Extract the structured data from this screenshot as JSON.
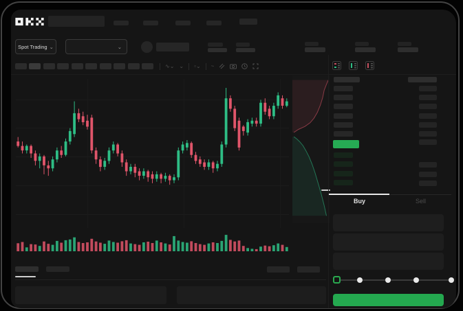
{
  "app": {
    "brand": "OKX"
  },
  "market_bar": {
    "market_selector_label": "Spot Trading",
    "chevron_glyph": "⌄"
  },
  "toolbar": {
    "indicator_glyph": "∿",
    "chevron_glyph": "⌄",
    "line_glyph": "~"
  },
  "trade_panel": {
    "buy_tab": "Buy",
    "sell_tab": "Sell"
  },
  "slider": {
    "steps": 5,
    "active_index": 0
  },
  "colors": {
    "up": "#2EBD85",
    "down": "#E0556A",
    "accent_green": "#26AB54",
    "last_price_highlight": "#26AB54",
    "bid_row_tint": "#16251A",
    "ask_row_gray": "#272727",
    "app_bg": "#151515",
    "panel_fill": "#1E1E1E"
  },
  "orderbook": {
    "view_icons": [
      "book-both-icon",
      "book-bids-icon",
      "book-asks-icon"
    ],
    "asks": [
      {
        "left": true,
        "right": true
      },
      {
        "left": true,
        "right": true
      },
      {
        "left": true,
        "right": true
      },
      {
        "left": true,
        "right": true
      },
      {
        "left": true,
        "right": true
      },
      {
        "left": true,
        "right": true
      }
    ],
    "last_price_row": {
      "highlight": "green",
      "right": true
    },
    "bids": [
      {
        "left": true,
        "right": false
      },
      {
        "left": true,
        "right": true
      },
      {
        "left": true,
        "right": true
      },
      {
        "left": true,
        "right": true
      }
    ]
  },
  "chart_data": {
    "type": "candlestick",
    "title": "",
    "note": "no numeric axis labels visible in screenshot; values are relative 0-100 of plot height",
    "grid": true,
    "legend": "none",
    "candles": [
      [
        58,
        61,
        54,
        55
      ],
      [
        55,
        58,
        50,
        52
      ],
      [
        52,
        56,
        50,
        55
      ],
      [
        55,
        56,
        47,
        50
      ],
      [
        50,
        52,
        42,
        45
      ],
      [
        45,
        50,
        40,
        48
      ],
      [
        48,
        49,
        36,
        42
      ],
      [
        42,
        45,
        35,
        40
      ],
      [
        40,
        48,
        38,
        46
      ],
      [
        46,
        54,
        44,
        52
      ],
      [
        52,
        55,
        47,
        49
      ],
      [
        49,
        60,
        48,
        58
      ],
      [
        58,
        67,
        56,
        65
      ],
      [
        63,
        85,
        61,
        77
      ],
      [
        77,
        80,
        71,
        73
      ],
      [
        75,
        78,
        69,
        71
      ],
      [
        72,
        76,
        66,
        68
      ],
      [
        74,
        76,
        50,
        52
      ],
      [
        52,
        54,
        43,
        46
      ],
      [
        46,
        48,
        38,
        41
      ],
      [
        41,
        47,
        39,
        45
      ],
      [
        45,
        54,
        43,
        52
      ],
      [
        52,
        58,
        50,
        56
      ],
      [
        56,
        57,
        48,
        50
      ],
      [
        50,
        52,
        41,
        44
      ],
      [
        44,
        46,
        35,
        38
      ],
      [
        38,
        43,
        36,
        41
      ],
      [
        41,
        43,
        34,
        37
      ],
      [
        38,
        40,
        32,
        35
      ],
      [
        35,
        40,
        33,
        38
      ],
      [
        38,
        39,
        31,
        34
      ],
      [
        36,
        38,
        30,
        33
      ],
      [
        33,
        38,
        31,
        36
      ],
      [
        36,
        37,
        30,
        33
      ],
      [
        33,
        37,
        31,
        35
      ],
      [
        35,
        36,
        29,
        32
      ],
      [
        32,
        36,
        30,
        34
      ],
      [
        34,
        54,
        32,
        52
      ],
      [
        52,
        58,
        50,
        56
      ],
      [
        54,
        59,
        52,
        57
      ],
      [
        57,
        58,
        47,
        49
      ],
      [
        49,
        51,
        43,
        45
      ],
      [
        46,
        48,
        41,
        43
      ],
      [
        44,
        46,
        39,
        41
      ],
      [
        41,
        46,
        39,
        44
      ],
      [
        44,
        45,
        37,
        40
      ],
      [
        40,
        45,
        38,
        43
      ],
      [
        43,
        58,
        41,
        56
      ],
      [
        56,
        94,
        54,
        87
      ],
      [
        87,
        89,
        78,
        80
      ],
      [
        80,
        82,
        65,
        67
      ],
      [
        72,
        74,
        52,
        54
      ],
      [
        68,
        69,
        62,
        65
      ],
      [
        64,
        73,
        62,
        71
      ],
      [
        70,
        74,
        68,
        72
      ],
      [
        72,
        74,
        68,
        70
      ],
      [
        70,
        86,
        68,
        84
      ],
      [
        84,
        87,
        76,
        78
      ],
      [
        80,
        82,
        73,
        75
      ],
      [
        75,
        84,
        73,
        82
      ],
      [
        82,
        91,
        80,
        89
      ],
      [
        87,
        89,
        80,
        82
      ],
      [
        82,
        87,
        81,
        85
      ]
    ],
    "volumes": [
      45,
      52,
      22,
      40,
      38,
      30,
      55,
      42,
      36,
      58,
      48,
      62,
      66,
      78,
      52,
      46,
      50,
      70,
      55,
      48,
      42,
      60,
      52,
      48,
      56,
      62,
      44,
      40,
      36,
      50,
      54,
      46,
      60,
      50,
      44,
      38,
      85,
      60,
      52,
      48,
      56,
      46,
      40,
      36,
      44,
      50,
      46,
      58,
      92,
      64,
      55,
      60,
      30,
      18,
      14,
      12,
      26,
      32,
      28,
      34,
      44,
      36,
      24
    ],
    "depth": {
      "orientation": "vertical",
      "asks_curve": [
        [
          0.95,
          0.03
        ],
        [
          0.9,
          0.06
        ],
        [
          0.84,
          0.1
        ],
        [
          0.8,
          0.15
        ],
        [
          0.74,
          0.2
        ],
        [
          0.66,
          0.25
        ],
        [
          0.57,
          0.29
        ],
        [
          0.47,
          0.32
        ],
        [
          0.33,
          0.345
        ],
        [
          0.16,
          0.365
        ],
        [
          0.04,
          0.385
        ]
      ],
      "bids_curve": [
        [
          0.04,
          0.415
        ],
        [
          0.12,
          0.43
        ],
        [
          0.2,
          0.45
        ],
        [
          0.28,
          0.475
        ],
        [
          0.36,
          0.51
        ],
        [
          0.44,
          0.55
        ],
        [
          0.52,
          0.6
        ],
        [
          0.6,
          0.66
        ],
        [
          0.68,
          0.73
        ],
        [
          0.76,
          0.8
        ],
        [
          0.84,
          0.88
        ],
        [
          0.9,
          0.95
        ]
      ]
    }
  }
}
